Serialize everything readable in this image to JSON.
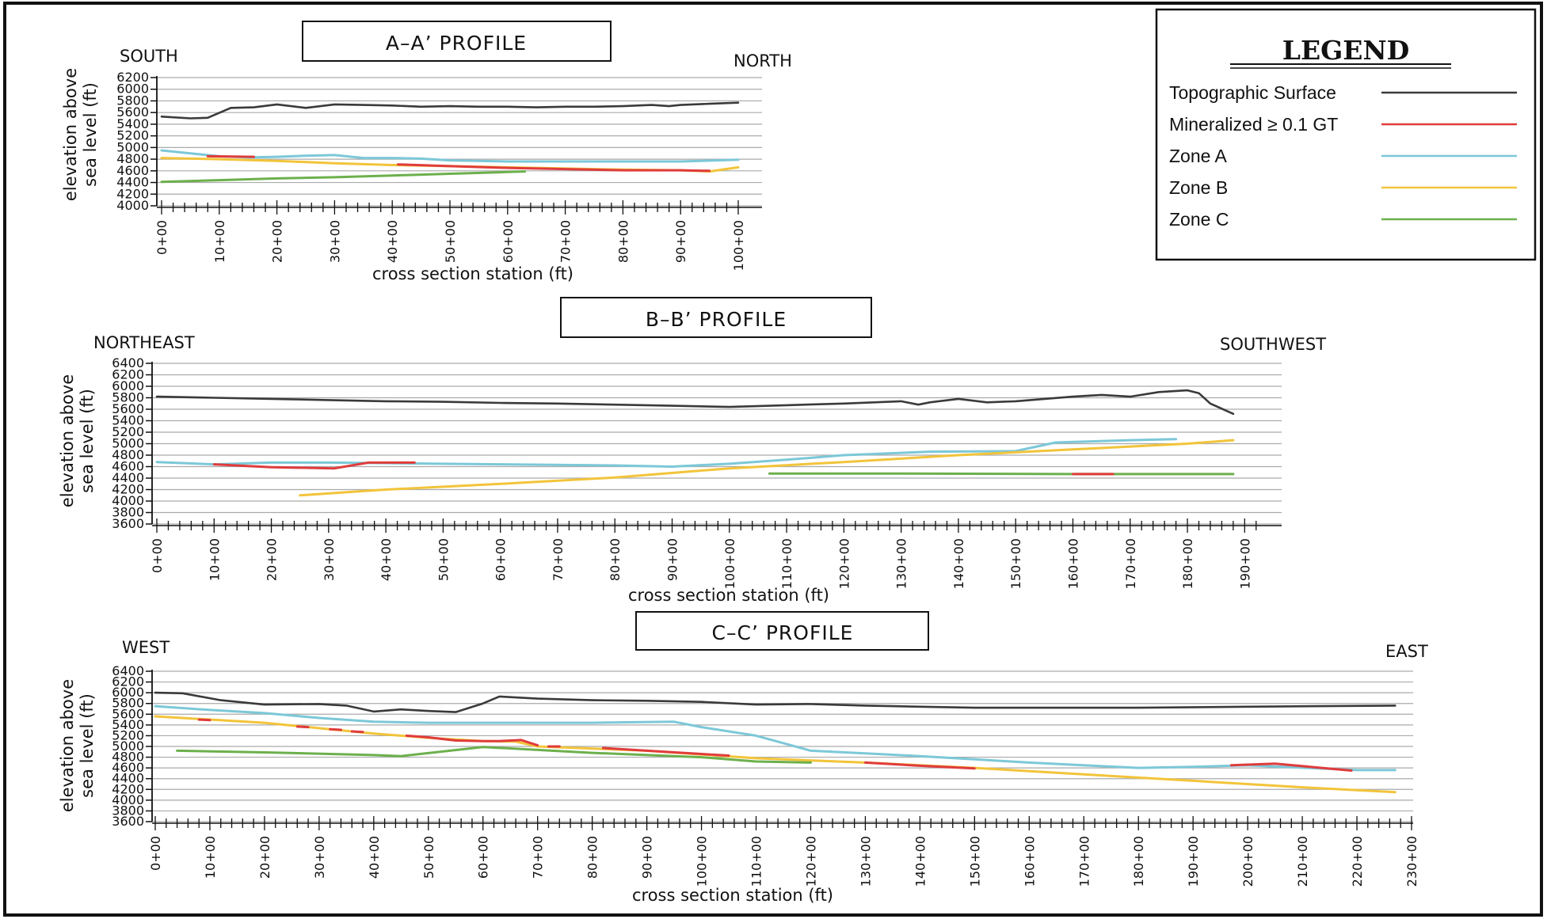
{
  "colors": {
    "topographic": "#3a3a3a",
    "mineralized": "#e03c3c",
    "zone_a": "#7cc8d8",
    "zone_b": "#f2c43a",
    "zone_c": "#6cb04c",
    "grid": "#aaaaaa"
  },
  "legend": {
    "title": "LEGEND",
    "items": [
      {
        "label": "Topographic Surface",
        "color_key": "topographic"
      },
      {
        "label": "Mineralized ≥ 0.1 GT",
        "color_key": "mineralized"
      },
      {
        "label": "Zone A",
        "color_key": "zone_a"
      },
      {
        "label": "Zone B",
        "color_key": "zone_b"
      },
      {
        "label": "Zone C",
        "color_key": "zone_c"
      }
    ]
  },
  "chart_data": [
    {
      "type": "line",
      "title": "A–A’ PROFILE",
      "left_label": "SOUTH",
      "right_label": "NORTH",
      "xlabel": "cross section station (ft)",
      "ylabel_line1": "elevation above",
      "ylabel_line2": "sea level (ft)",
      "xlim": [
        0,
        100
      ],
      "ylim": [
        4000,
        6200
      ],
      "y_ticks": [
        4000,
        4200,
        4400,
        4600,
        4800,
        5000,
        5200,
        5400,
        5600,
        5800,
        6000,
        6200
      ],
      "x_ticks": [
        0,
        10,
        20,
        30,
        40,
        50,
        60,
        70,
        80,
        90,
        100
      ],
      "x_tick_labels": [
        "0+00",
        "10+00",
        "20+00",
        "30+00",
        "40+00",
        "50+00",
        "60+00",
        "70+00",
        "80+00",
        "90+00",
        "100+00"
      ],
      "series": [
        {
          "color_key": "topographic",
          "x": [
            0,
            5,
            8,
            12,
            16,
            20,
            25,
            30,
            35,
            40,
            45,
            50,
            55,
            60,
            65,
            70,
            75,
            80,
            85,
            88,
            90,
            95,
            100
          ],
          "y": [
            5530,
            5500,
            5510,
            5680,
            5690,
            5740,
            5680,
            5740,
            5730,
            5720,
            5700,
            5710,
            5700,
            5700,
            5690,
            5700,
            5700,
            5710,
            5730,
            5710,
            5730,
            5750,
            5770
          ]
        },
        {
          "color_key": "zone_a",
          "x": [
            0,
            5,
            10,
            15,
            20,
            25,
            30,
            35,
            40,
            45,
            50,
            60,
            70,
            80,
            90,
            100
          ],
          "y": [
            4950,
            4900,
            4850,
            4830,
            4840,
            4860,
            4870,
            4820,
            4820,
            4810,
            4780,
            4760,
            4760,
            4760,
            4760,
            4790
          ]
        },
        {
          "color_key": "zone_b",
          "x": [
            0,
            10,
            20,
            30,
            40,
            50,
            60,
            70,
            80,
            90,
            95,
            100
          ],
          "y": [
            4820,
            4800,
            4770,
            4730,
            4700,
            4680,
            4660,
            4640,
            4620,
            4610,
            4590,
            4660
          ]
        },
        {
          "color_key": "zone_c",
          "x": [
            0,
            10,
            20,
            30,
            40,
            50,
            60,
            63
          ],
          "y": [
            4410,
            4440,
            4470,
            4490,
            4520,
            4550,
            4580,
            4590
          ]
        },
        {
          "color_key": "mineralized",
          "x": [
            8,
            16
          ],
          "y": [
            4850,
            4840
          ]
        },
        {
          "color_key": "mineralized",
          "x": [
            41,
            50,
            60,
            70,
            80,
            90,
            95
          ],
          "y": [
            4710,
            4680,
            4650,
            4630,
            4610,
            4610,
            4600
          ]
        }
      ]
    },
    {
      "type": "line",
      "title": "B–B’ PROFILE",
      "left_label": "NORTHEAST",
      "right_label": "SOUTHWEST",
      "xlabel": "cross section station (ft)",
      "ylabel_line1": "elevation above",
      "ylabel_line2": "sea level (ft)",
      "xlim": [
        0,
        193
      ],
      "ylim": [
        3600,
        6400
      ],
      "y_ticks": [
        3600,
        3800,
        4000,
        4200,
        4400,
        4600,
        4800,
        5000,
        5200,
        5400,
        5600,
        5800,
        6000,
        6200,
        6400
      ],
      "x_ticks": [
        0,
        10,
        20,
        30,
        40,
        50,
        60,
        70,
        80,
        90,
        100,
        110,
        120,
        130,
        140,
        150,
        160,
        170,
        180,
        190
      ],
      "x_tick_labels": [
        "0+00",
        "10+00",
        "20+00",
        "30+00",
        "40+00",
        "50+00",
        "60+00",
        "70+00",
        "80+00",
        "90+00",
        "100+00",
        "110+00",
        "120+00",
        "130+00",
        "140+00",
        "150+00",
        "160+00",
        "170+00",
        "180+00",
        "190+00"
      ],
      "series": [
        {
          "color_key": "topographic",
          "x": [
            0,
            10,
            20,
            30,
            40,
            50,
            60,
            70,
            80,
            90,
            100,
            110,
            120,
            130,
            133,
            135,
            140,
            145,
            150,
            160,
            165,
            170,
            175,
            180,
            182,
            184,
            188
          ],
          "y": [
            5820,
            5800,
            5780,
            5760,
            5740,
            5730,
            5710,
            5700,
            5680,
            5660,
            5640,
            5670,
            5700,
            5740,
            5680,
            5720,
            5780,
            5720,
            5740,
            5820,
            5850,
            5820,
            5900,
            5930,
            5880,
            5700,
            5520
          ]
        },
        {
          "color_key": "zone_a",
          "x": [
            0,
            10,
            20,
            30,
            40,
            60,
            80,
            90,
            100,
            110,
            120,
            130,
            135,
            150,
            157,
            170,
            178
          ],
          "y": [
            4680,
            4640,
            4670,
            4670,
            4660,
            4640,
            4620,
            4600,
            4650,
            4720,
            4800,
            4840,
            4860,
            4870,
            5020,
            5060,
            5080
          ]
        },
        {
          "color_key": "zone_b",
          "x": [
            25,
            40,
            60,
            80,
            100,
            120,
            140,
            160,
            180,
            188
          ],
          "y": [
            4100,
            4200,
            4300,
            4410,
            4570,
            4680,
            4800,
            4900,
            5000,
            5060
          ]
        },
        {
          "color_key": "zone_c",
          "x": [
            107,
            130,
            160,
            188
          ],
          "y": [
            4480,
            4480,
            4470,
            4470
          ]
        },
        {
          "color_key": "mineralized",
          "x": [
            10,
            20,
            31,
            37,
            45
          ],
          "y": [
            4640,
            4590,
            4570,
            4670,
            4670
          ]
        },
        {
          "color_key": "mineralized",
          "x": [
            160,
            167
          ],
          "y": [
            4470,
            4470
          ]
        }
      ]
    },
    {
      "type": "line",
      "title": "C–C’ PROFILE",
      "left_label": "WEST",
      "right_label": "EAST",
      "xlabel": "cross section station (ft)",
      "ylabel_line1": "elevation above",
      "ylabel_line2": "sea level (ft)",
      "xlim": [
        0,
        230
      ],
      "ylim": [
        3600,
        6400
      ],
      "y_ticks": [
        3600,
        3800,
        4000,
        4200,
        4400,
        4600,
        4800,
        5000,
        5200,
        5400,
        5600,
        5800,
        6000,
        6200,
        6400
      ],
      "x_ticks": [
        0,
        10,
        20,
        30,
        40,
        50,
        60,
        70,
        80,
        90,
        100,
        110,
        120,
        130,
        140,
        150,
        160,
        170,
        180,
        190,
        200,
        210,
        220,
        230
      ],
      "x_tick_labels": [
        "0+00",
        "10+00",
        "20+00",
        "30+00",
        "40+00",
        "50+00",
        "60+00",
        "70+00",
        "80+00",
        "90+00",
        "100+00",
        "110+00",
        "120+00",
        "130+00",
        "140+00",
        "150+00",
        "160+00",
        "170+00",
        "180+00",
        "190+00",
        "200+00",
        "210+00",
        "220+00",
        "230+00"
      ],
      "series": [
        {
          "color_key": "topographic",
          "x": [
            0,
            5,
            12,
            20,
            30,
            35,
            40,
            45,
            50,
            55,
            60,
            63,
            70,
            80,
            90,
            100,
            110,
            120,
            130,
            140,
            150,
            160,
            180,
            200,
            227
          ],
          "y": [
            6000,
            5990,
            5860,
            5780,
            5790,
            5760,
            5650,
            5690,
            5660,
            5640,
            5800,
            5930,
            5890,
            5860,
            5850,
            5830,
            5780,
            5790,
            5760,
            5740,
            5720,
            5720,
            5720,
            5740,
            5760
          ]
        },
        {
          "color_key": "zone_a",
          "x": [
            0,
            10,
            20,
            30,
            40,
            50,
            60,
            70,
            80,
            95,
            100,
            110,
            120,
            130,
            140,
            150,
            160,
            180,
            190,
            200,
            220,
            227
          ],
          "y": [
            5750,
            5680,
            5620,
            5530,
            5460,
            5440,
            5440,
            5440,
            5440,
            5460,
            5360,
            5200,
            4920,
            4870,
            4820,
            4760,
            4700,
            4600,
            4620,
            4650,
            4560,
            4560
          ]
        },
        {
          "color_key": "zone_b",
          "x": [
            0,
            20,
            40,
            50,
            60,
            66,
            70,
            90,
            110,
            130,
            150,
            170,
            190,
            210,
            227
          ],
          "y": [
            5560,
            5440,
            5240,
            5160,
            5100,
            5090,
            5000,
            4920,
            4780,
            4700,
            4600,
            4480,
            4360,
            4240,
            4150
          ]
        },
        {
          "color_key": "zone_c",
          "x": [
            4,
            20,
            40,
            45,
            60,
            80,
            100,
            110,
            120
          ],
          "y": [
            4920,
            4890,
            4840,
            4820,
            4990,
            4880,
            4800,
            4720,
            4700
          ]
        },
        {
          "color_key": "mineralized",
          "x": [
            8,
            10
          ],
          "y": [
            5500,
            5490
          ]
        },
        {
          "color_key": "mineralized",
          "x": [
            26,
            28
          ],
          "y": [
            5370,
            5360
          ]
        },
        {
          "color_key": "mineralized",
          "x": [
            32,
            34
          ],
          "y": [
            5320,
            5310
          ]
        },
        {
          "color_key": "mineralized",
          "x": [
            36,
            38
          ],
          "y": [
            5280,
            5270
          ]
        },
        {
          "color_key": "mineralized",
          "x": [
            46,
            50,
            55,
            60,
            63,
            67,
            70
          ],
          "y": [
            5200,
            5170,
            5110,
            5100,
            5100,
            5120,
            5020
          ]
        },
        {
          "color_key": "mineralized",
          "x": [
            72,
            74
          ],
          "y": [
            5000,
            5000
          ]
        },
        {
          "color_key": "mineralized",
          "x": [
            82,
            90,
            100,
            105
          ],
          "y": [
            4970,
            4920,
            4860,
            4830
          ]
        },
        {
          "color_key": "mineralized",
          "x": [
            130,
            140,
            150
          ],
          "y": [
            4700,
            4640,
            4590
          ]
        },
        {
          "color_key": "mineralized",
          "x": [
            197,
            205,
            219
          ],
          "y": [
            4650,
            4680,
            4550
          ]
        }
      ]
    }
  ]
}
